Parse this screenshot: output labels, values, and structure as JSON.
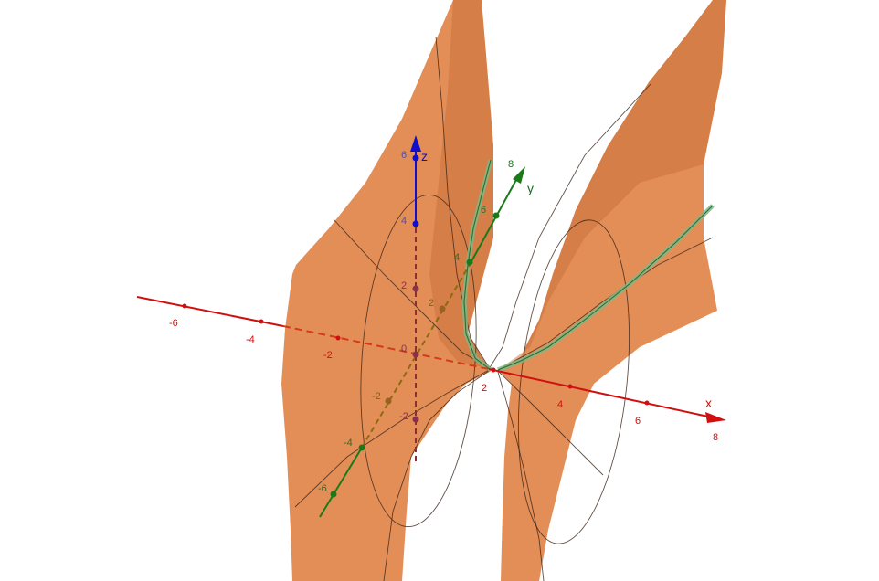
{
  "colors": {
    "surface": "#e2854a",
    "x_axis": "#d01010",
    "y_axis": "#1a7a1a",
    "z_axis": "#1010cc",
    "curve": "#7fb884"
  },
  "axes": {
    "x": {
      "label": "x",
      "ticks": [
        "-6",
        "-4",
        "-2",
        "2",
        "4",
        "6",
        "8"
      ]
    },
    "y": {
      "label": "y",
      "ticks": [
        "-6",
        "-4",
        "-2",
        "2",
        "4",
        "6",
        "8"
      ]
    },
    "z": {
      "label": "z",
      "ticks": [
        "-2",
        "0",
        "2",
        "4",
        "6"
      ]
    }
  }
}
